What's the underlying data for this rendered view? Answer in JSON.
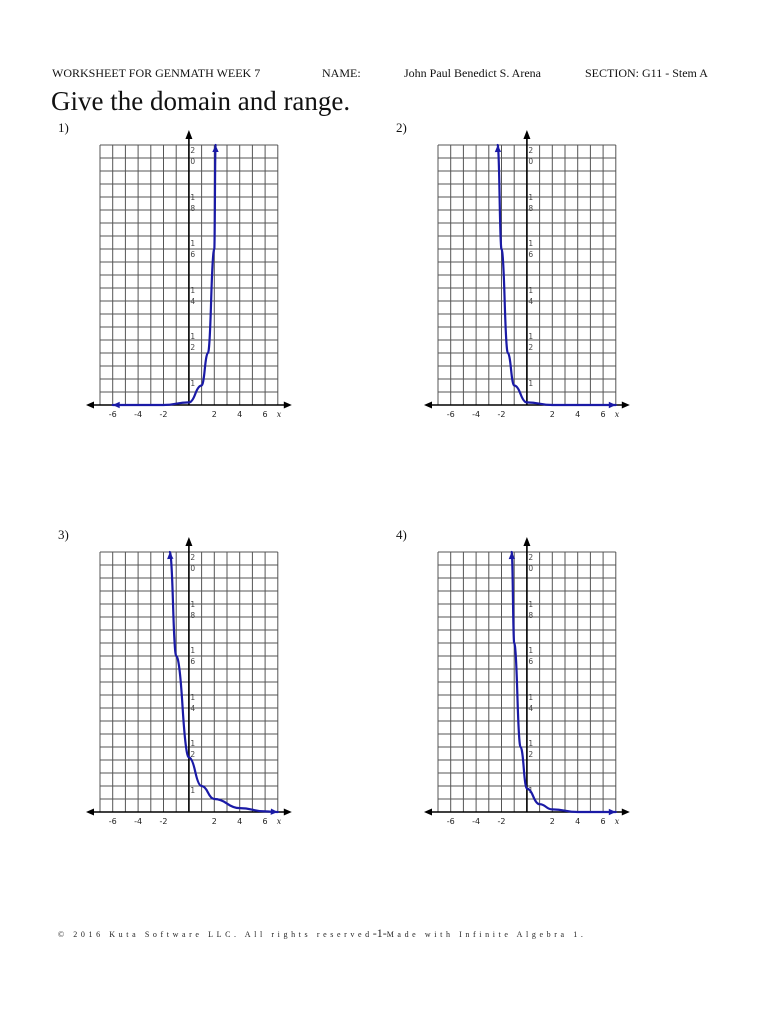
{
  "header": {
    "worksheet": "WORKSHEET FOR GENMATH WEEK 7",
    "name_label": "NAME:",
    "name_value": "John Paul Benedict S. Arena",
    "section": "SECTION: G11 - Stem A"
  },
  "instructions": "Give the domain and range.",
  "problems": [
    {
      "number": "1)",
      "description": "Exponential growth curve, rising steeply to the right, approaching y = 0 on the left"
    },
    {
      "number": "2)",
      "description": "Exponential decay curve, steep on the left, approaching y = 0 on the right"
    },
    {
      "number": "3)",
      "description": "Exponential decay curve, y-intercept near 4, approaching y = 0 on the right"
    },
    {
      "number": "4)",
      "description": "Exponential decay curve, y-intercept near 2, approaching y = 0 on the right"
    }
  ],
  "axis": {
    "x_ticks": [
      "-6",
      "-4",
      "-2",
      "2",
      "4",
      "6"
    ],
    "x_label": "x",
    "y_labels": [
      {
        "top": "2",
        "bottom": "0"
      },
      {
        "top": "1",
        "bottom": "8"
      },
      {
        "top": "1",
        "bottom": "6"
      },
      {
        "top": "1",
        "bottom": "4"
      },
      {
        "top": "1",
        "bottom": "2"
      },
      {
        "top": "1",
        "bottom": ""
      }
    ]
  },
  "colors": {
    "curve": "#1a1aa6",
    "grid": "#555555",
    "axis": "#000000"
  },
  "footer": {
    "left": "© 2016 Kuta Software LLC. All rights reserved",
    "page": "-1-",
    "right": "Made with Infinite Algebra 1."
  },
  "chart_data": [
    {
      "type": "line",
      "title": "1)",
      "xlabel": "x",
      "ylabel": "",
      "xlim": [
        -7,
        7
      ],
      "ylim": [
        0,
        20
      ],
      "grid": true,
      "x": [
        -6,
        -4,
        -2,
        0,
        1,
        1.5,
        2,
        2.1
      ],
      "y": [
        0.0,
        0.0,
        0.0,
        0.2,
        1.5,
        4,
        12,
        20
      ]
    },
    {
      "type": "line",
      "title": "2)",
      "xlabel": "x",
      "ylabel": "",
      "xlim": [
        -7,
        7
      ],
      "ylim": [
        0,
        20
      ],
      "grid": true,
      "x": [
        -2.3,
        -2,
        -1.5,
        -1,
        0,
        2,
        4,
        7
      ],
      "y": [
        20,
        12,
        4,
        1.5,
        0.2,
        0.0,
        0.0,
        0.0
      ]
    },
    {
      "type": "line",
      "title": "3)",
      "xlabel": "x",
      "ylabel": "",
      "xlim": [
        -7,
        7
      ],
      "ylim": [
        0,
        20
      ],
      "grid": true,
      "x": [
        -1.5,
        -1,
        0,
        1,
        2,
        4,
        6,
        7
      ],
      "y": [
        20,
        12,
        4.2,
        2,
        1,
        0.3,
        0.05,
        0.0
      ]
    },
    {
      "type": "line",
      "title": "4)",
      "xlabel": "x",
      "ylabel": "",
      "xlim": [
        -7,
        7
      ],
      "ylim": [
        0,
        20
      ],
      "grid": true,
      "x": [
        -1.2,
        -1,
        -0.5,
        0,
        1,
        2,
        4,
        7
      ],
      "y": [
        20,
        13,
        5,
        1.8,
        0.6,
        0.2,
        0.0,
        0.0
      ]
    }
  ]
}
